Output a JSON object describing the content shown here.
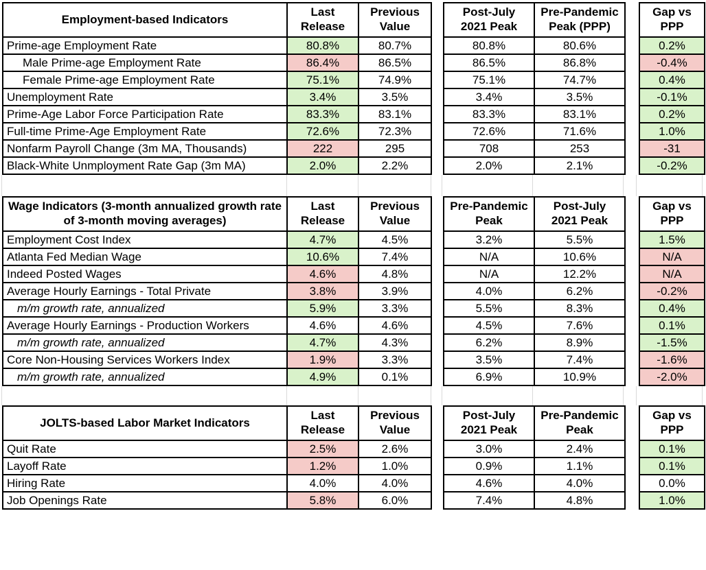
{
  "colors": {
    "positive_fill": "#d9f2ca",
    "negative_fill": "#f5cbc8",
    "border": "#000000",
    "gridline": "#d9d9d9",
    "background": "#ffffff",
    "text": "#000000"
  },
  "chart_data": [
    {
      "type": "table",
      "title": "Employment-based Indicators",
      "column_headers": [
        [
          "Last",
          "Release"
        ],
        [
          "Previous",
          "Value"
        ],
        [
          "Post-July",
          "2021 Peak"
        ],
        [
          "Pre-Pandemic",
          "Peak (PPP)"
        ],
        [
          "Gap vs",
          "PPP"
        ]
      ],
      "rows": [
        {
          "label": "Prime-age Employment Rate",
          "indent": 0,
          "italic": false,
          "values": [
            "80.8%",
            "80.7%",
            "80.8%",
            "80.6%",
            "0.2%"
          ],
          "fills": [
            "green",
            "none",
            "none",
            "none",
            "green"
          ]
        },
        {
          "label": "Male Prime-age Employment Rate",
          "indent": 1,
          "italic": false,
          "values": [
            "86.4%",
            "86.5%",
            "86.5%",
            "86.8%",
            "-0.4%"
          ],
          "fills": [
            "red",
            "none",
            "none",
            "none",
            "red"
          ]
        },
        {
          "label": "Female Prime-age Employment Rate",
          "indent": 1,
          "italic": false,
          "values": [
            "75.1%",
            "74.9%",
            "75.1%",
            "74.7%",
            "0.4%"
          ],
          "fills": [
            "green",
            "none",
            "none",
            "none",
            "green"
          ]
        },
        {
          "label": "Unemployment Rate",
          "indent": 0,
          "italic": false,
          "values": [
            "3.4%",
            "3.5%",
            "3.4%",
            "3.5%",
            "-0.1%"
          ],
          "fills": [
            "green",
            "none",
            "none",
            "none",
            "green"
          ]
        },
        {
          "label": "Prime-Age Labor Force Participation Rate",
          "indent": 0,
          "italic": false,
          "values": [
            "83.3%",
            "83.1%",
            "83.3%",
            "83.1%",
            "0.2%"
          ],
          "fills": [
            "green",
            "none",
            "none",
            "none",
            "green"
          ]
        },
        {
          "label": "Full-time Prime-Age Employment Rate",
          "indent": 0,
          "italic": false,
          "values": [
            "72.6%",
            "72.3%",
            "72.6%",
            "71.6%",
            "1.0%"
          ],
          "fills": [
            "green",
            "none",
            "none",
            "none",
            "green"
          ]
        },
        {
          "label": "Nonfarm Payroll Change (3m MA, Thousands)",
          "indent": 0,
          "italic": false,
          "values": [
            "222",
            "295",
            "708",
            "253",
            "-31"
          ],
          "fills": [
            "red",
            "none",
            "none",
            "none",
            "red"
          ]
        },
        {
          "label": "Black-White Unmployment Rate Gap (3m MA)",
          "indent": 0,
          "italic": false,
          "values": [
            "2.0%",
            "2.2%",
            "2.0%",
            "2.1%",
            "-0.2%"
          ],
          "fills": [
            "green",
            "none",
            "none",
            "none",
            "green"
          ]
        }
      ]
    },
    {
      "type": "table",
      "title": "Wage Indicators (3-month annualized growth rate of 3-month moving averages)",
      "column_headers": [
        [
          "Last",
          "Release"
        ],
        [
          "Previous",
          "Value"
        ],
        [
          "Pre-Pandemic",
          "Peak"
        ],
        [
          "Post-July",
          "2021 Peak"
        ],
        [
          "Gap vs",
          "PPP"
        ]
      ],
      "rows": [
        {
          "label": "Employment Cost Index",
          "indent": 0,
          "italic": false,
          "values": [
            "4.7%",
            "4.5%",
            "3.2%",
            "5.5%",
            "1.5%"
          ],
          "fills": [
            "green",
            "none",
            "none",
            "none",
            "green"
          ]
        },
        {
          "label": "Atlanta Fed Median Wage",
          "indent": 0,
          "italic": false,
          "values": [
            "10.6%",
            "7.4%",
            "N/A",
            "10.6%",
            "N/A"
          ],
          "fills": [
            "green",
            "none",
            "none",
            "none",
            "red"
          ]
        },
        {
          "label": "Indeed Posted Wages",
          "indent": 0,
          "italic": false,
          "values": [
            "4.6%",
            "4.8%",
            "N/A",
            "12.2%",
            "N/A"
          ],
          "fills": [
            "red",
            "none",
            "none",
            "none",
            "red"
          ]
        },
        {
          "label": "Average Hourly Earnings - Total Private",
          "indent": 0,
          "italic": false,
          "values": [
            "3.8%",
            "3.9%",
            "4.0%",
            "6.2%",
            "-0.2%"
          ],
          "fills": [
            "red",
            "none",
            "none",
            "none",
            "red"
          ]
        },
        {
          "label": "m/m growth rate, annualized",
          "indent": 0,
          "italic": true,
          "values": [
            "5.9%",
            "3.3%",
            "5.5%",
            "8.3%",
            "0.4%"
          ],
          "fills": [
            "green",
            "none",
            "none",
            "none",
            "green"
          ]
        },
        {
          "label": "Average Hourly Earnings - Production Workers",
          "indent": 0,
          "italic": false,
          "values": [
            "4.6%",
            "4.6%",
            "4.5%",
            "7.6%",
            "0.1%"
          ],
          "fills": [
            "none",
            "none",
            "none",
            "none",
            "green"
          ]
        },
        {
          "label": "m/m growth rate, annualized",
          "indent": 0,
          "italic": true,
          "values": [
            "4.7%",
            "4.3%",
            "6.2%",
            "8.9%",
            "-1.5%"
          ],
          "fills": [
            "green",
            "none",
            "none",
            "none",
            "green"
          ]
        },
        {
          "label": "Core Non-Housing Services Workers Index",
          "indent": 0,
          "italic": false,
          "values": [
            "1.9%",
            "3.3%",
            "3.5%",
            "7.4%",
            "-1.6%"
          ],
          "fills": [
            "red",
            "none",
            "none",
            "none",
            "red"
          ]
        },
        {
          "label": "m/m growth rate, annualized",
          "indent": 0,
          "italic": true,
          "values": [
            "4.9%",
            "0.1%",
            "6.9%",
            "10.9%",
            "-2.0%"
          ],
          "fills": [
            "green",
            "none",
            "none",
            "none",
            "red"
          ]
        }
      ]
    },
    {
      "type": "table",
      "title": "JOLTS-based Labor Market Indicators",
      "column_headers": [
        [
          "Last",
          "Release"
        ],
        [
          "Previous",
          "Value"
        ],
        [
          "Post-July",
          "2021 Peak"
        ],
        [
          "Pre-Pandemic",
          "Peak"
        ],
        [
          "Gap vs",
          "PPP"
        ]
      ],
      "rows": [
        {
          "label": "Quit Rate",
          "indent": 0,
          "italic": false,
          "values": [
            "2.5%",
            "2.6%",
            "3.0%",
            "2.4%",
            "0.1%"
          ],
          "fills": [
            "red",
            "none",
            "none",
            "none",
            "green"
          ]
        },
        {
          "label": "Layoff Rate",
          "indent": 0,
          "italic": false,
          "values": [
            "1.2%",
            "1.0%",
            "0.9%",
            "1.1%",
            "0.1%"
          ],
          "fills": [
            "red",
            "none",
            "none",
            "none",
            "green"
          ]
        },
        {
          "label": "Hiring Rate",
          "indent": 0,
          "italic": false,
          "values": [
            "4.0%",
            "4.0%",
            "4.6%",
            "4.0%",
            "0.0%"
          ],
          "fills": [
            "none",
            "none",
            "none",
            "none",
            "none"
          ]
        },
        {
          "label": "Job Openings Rate",
          "indent": 0,
          "italic": false,
          "values": [
            "5.8%",
            "6.0%",
            "7.4%",
            "4.8%",
            "1.0%"
          ],
          "fills": [
            "red",
            "none",
            "none",
            "none",
            "green"
          ]
        }
      ]
    }
  ]
}
